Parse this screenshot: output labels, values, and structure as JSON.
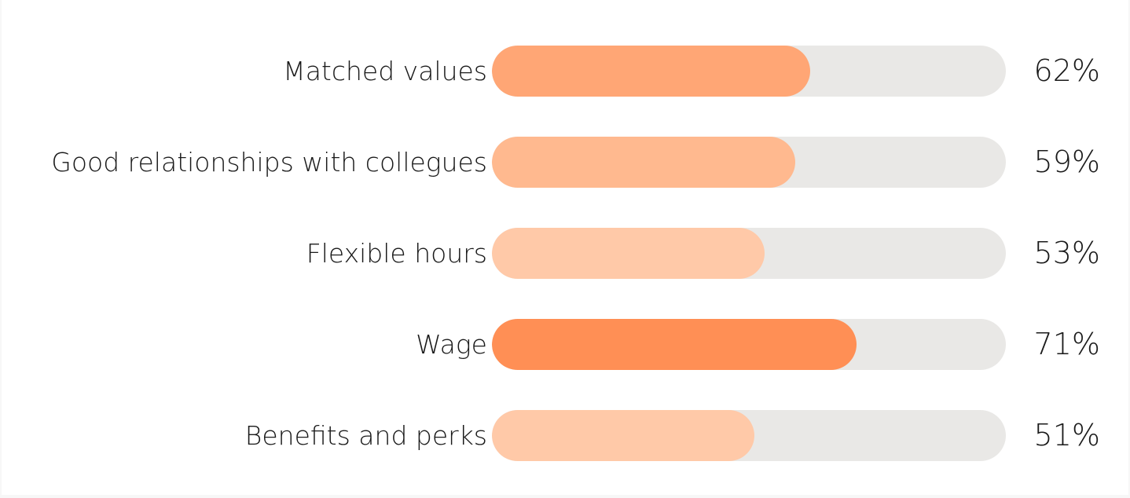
{
  "chart_data": {
    "type": "bar",
    "orientation": "horizontal",
    "categories": [
      "Matched values",
      "Good relationships with collegues",
      "Flexible hours",
      "Wage",
      "Benefits and perks"
    ],
    "values": [
      62,
      59,
      53,
      71,
      51
    ],
    "value_labels": [
      "62%",
      "59%",
      "53%",
      "71%",
      "51%"
    ],
    "xlim": [
      0,
      100
    ],
    "bar_colors": [
      "#ffa675",
      "#ffb98f",
      "#ffc9a8",
      "#ff8f55",
      "#ffc9a8"
    ],
    "track_color": "#e9e8e6",
    "grid": false,
    "legend": "none"
  }
}
